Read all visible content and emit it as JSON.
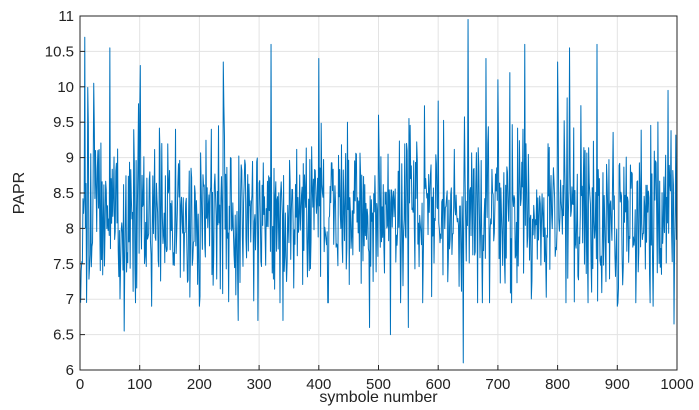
{
  "chart_data": {
    "type": "line",
    "title": "",
    "xlabel": "symbole number",
    "ylabel": "PAPR",
    "xlim": [
      0,
      1000
    ],
    "ylim": [
      6,
      11
    ],
    "xticks": [
      0,
      100,
      200,
      300,
      400,
      500,
      600,
      700,
      800,
      900,
      1000
    ],
    "yticks": [
      6,
      6.5,
      7,
      7.5,
      8,
      8.5,
      9,
      9.5,
      10,
      10.5,
      11
    ],
    "xtick_labels": [
      "0",
      "100",
      "200",
      "300",
      "400",
      "500",
      "600",
      "700",
      "800",
      "900",
      "1000"
    ],
    "ytick_labels": [
      "6",
      "6.5",
      "7",
      "7.5",
      "8",
      "8.5",
      "9",
      "9.5",
      "10",
      "10.5",
      "11"
    ],
    "grid": true,
    "legend": "none",
    "colors": {
      "series": "#0072bd",
      "grid": "#e3e3e3",
      "axes": "#262626"
    },
    "series": [
      {
        "x_start": 1,
        "x_step": 1,
        "peaks": [
          [
            2,
            7.4
          ],
          [
            8,
            10.7
          ],
          [
            30,
            9.1
          ],
          [
            50,
            10.55
          ],
          [
            74,
            6.55
          ],
          [
            100,
            9.6
          ],
          [
            101,
            10.3
          ],
          [
            120,
            6.9
          ],
          [
            160,
            9.4
          ],
          [
            200,
            6.9
          ],
          [
            220,
            9.4
          ],
          [
            240,
            10.35
          ],
          [
            265,
            6.7
          ],
          [
            298,
            6.7
          ],
          [
            320,
            10.6
          ],
          [
            340,
            6.7
          ],
          [
            400,
            10.4
          ],
          [
            448,
            9.5
          ],
          [
            485,
            6.6
          ],
          [
            500,
            9.6
          ],
          [
            520,
            6.5
          ],
          [
            550,
            6.6
          ],
          [
            600,
            9.8
          ],
          [
            642,
            6.1
          ],
          [
            650,
            10.95
          ],
          [
            680,
            10.4
          ],
          [
            700,
            10.1
          ],
          [
            720,
            10.2
          ],
          [
            745,
            10.6
          ],
          [
            800,
            10.35
          ],
          [
            820,
            10.55
          ],
          [
            846,
            9.1
          ],
          [
            866,
            10.6
          ],
          [
            900,
            6.9
          ],
          [
            960,
            6.9
          ],
          [
            985,
            9.95
          ],
          [
            995,
            6.65
          ]
        ]
      }
    ]
  }
}
